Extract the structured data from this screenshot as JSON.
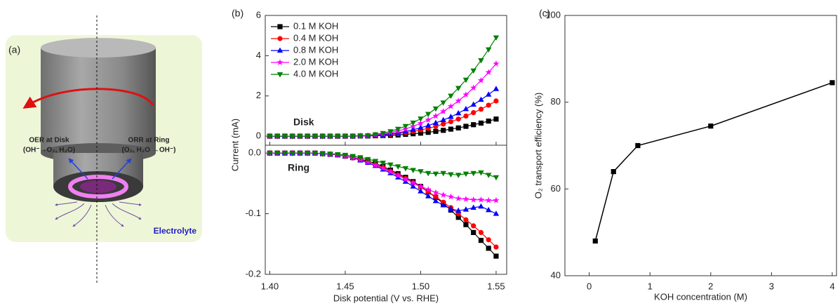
{
  "panel_a": {
    "label": "(a)",
    "oer": "OER at Disk",
    "oer_reaction": "(OH⁻→O₂, H₂O)",
    "orr": "ORR at Ring",
    "orr_reaction": "(O₂, H₂O →OH⁻)",
    "medium": "Electrolyte"
  },
  "chart_data": [
    {
      "type": "stacked_line",
      "label": "(b)",
      "x_label": "Disk potential (V vs. RHE)",
      "y_label": "Current (mA)",
      "top_annotation": "Disk",
      "bottom_annotation": "Ring",
      "x": [
        1.4,
        1.405,
        1.41,
        1.415,
        1.42,
        1.425,
        1.43,
        1.435,
        1.44,
        1.445,
        1.45,
        1.455,
        1.46,
        1.465,
        1.47,
        1.475,
        1.48,
        1.485,
        1.49,
        1.495,
        1.5,
        1.505,
        1.51,
        1.515,
        1.52,
        1.525,
        1.53,
        1.535,
        1.54,
        1.545,
        1.55
      ],
      "xlim": [
        1.397,
        1.557
      ],
      "xticks": [
        {
          "value": 1.4,
          "label": "1.40"
        },
        1.45,
        {
          "value": 1.5,
          "label": "1.50"
        },
        1.55
      ],
      "ylim": [
        -0.45,
        6
      ],
      "yticks": [
        0,
        2,
        4,
        6
      ],
      "bottom_ylim": [
        -0.2,
        0.013
      ],
      "bottom_yticks": [
        {
          "value": 0,
          "label": "0.0"
        },
        -0.1,
        -0.2
      ],
      "series": [
        {
          "name": "0.1 M KOH",
          "color": "#000000",
          "marker": "square",
          "values": [
            0,
            0,
            0,
            0,
            0,
            0,
            0,
            0,
            0,
            0,
            0,
            0,
            0.01,
            0.01,
            0.02,
            0.03,
            0.04,
            0.06,
            0.09,
            0.12,
            0.15,
            0.19,
            0.24,
            0.29,
            0.35,
            0.41,
            0.49,
            0.57,
            0.65,
            0.75,
            0.85
          ],
          "bottom_values": [
            0,
            0,
            0,
            0,
            0,
            0,
            0,
            -0.001,
            -0.002,
            -0.003,
            -0.005,
            -0.007,
            -0.01,
            -0.013,
            -0.017,
            -0.022,
            -0.028,
            -0.034,
            -0.04,
            -0.047,
            -0.055,
            -0.064,
            -0.073,
            -0.083,
            -0.094,
            -0.106,
            -0.118,
            -0.131,
            -0.144,
            -0.157,
            -0.17
          ]
        },
        {
          "name": "0.4 M KOH",
          "color": "#ff0000",
          "marker": "circle",
          "values": [
            0,
            0,
            0,
            0,
            0,
            0,
            0,
            0,
            0,
            0,
            0,
            0,
            0.01,
            0.02,
            0.03,
            0.05,
            0.09,
            0.13,
            0.18,
            0.24,
            0.31,
            0.39,
            0.49,
            0.6,
            0.72,
            0.85,
            1.0,
            1.17,
            1.34,
            1.54,
            1.75
          ],
          "bottom_values": [
            0,
            0,
            0,
            0,
            0,
            0,
            0,
            -0.001,
            -0.002,
            -0.003,
            -0.005,
            -0.008,
            -0.011,
            -0.015,
            -0.019,
            -0.024,
            -0.03,
            -0.036,
            -0.042,
            -0.049,
            -0.056,
            -0.064,
            -0.072,
            -0.081,
            -0.09,
            -0.1,
            -0.11,
            -0.12,
            -0.131,
            -0.143,
            -0.155
          ]
        },
        {
          "name": "0.8 M KOH",
          "color": "#0000ff",
          "marker": "triangle-up",
          "values": [
            0,
            0,
            0,
            0,
            0,
            0,
            0,
            0,
            0,
            0,
            0,
            0,
            0.01,
            0.02,
            0.04,
            0.07,
            0.12,
            0.17,
            0.24,
            0.32,
            0.42,
            0.53,
            0.66,
            0.8,
            0.96,
            1.14,
            1.35,
            1.57,
            1.81,
            2.07,
            2.35
          ],
          "bottom_values": [
            0,
            0,
            0,
            0,
            0,
            0,
            0,
            -0.001,
            -0.002,
            -0.003,
            -0.005,
            -0.008,
            -0.012,
            -0.016,
            -0.021,
            -0.027,
            -0.033,
            -0.04,
            -0.047,
            -0.055,
            -0.063,
            -0.071,
            -0.079,
            -0.086,
            -0.092,
            -0.095,
            -0.093,
            -0.09,
            -0.088,
            -0.094,
            -0.1
          ]
        },
        {
          "name": "2.0 M KOH",
          "color": "#ff00ff",
          "marker": "star",
          "values": [
            0,
            0,
            0,
            0,
            0,
            0,
            0,
            0,
            0,
            0,
            0,
            0,
            0.01,
            0.03,
            0.06,
            0.11,
            0.18,
            0.26,
            0.36,
            0.49,
            0.64,
            0.81,
            1.0,
            1.23,
            1.48,
            1.75,
            2.06,
            2.4,
            2.77,
            3.17,
            3.6
          ],
          "bottom_values": [
            0,
            0,
            0,
            0,
            0,
            0,
            0,
            -0.001,
            -0.002,
            -0.003,
            -0.005,
            -0.008,
            -0.011,
            -0.015,
            -0.02,
            -0.025,
            -0.031,
            -0.037,
            -0.043,
            -0.049,
            -0.055,
            -0.06,
            -0.065,
            -0.069,
            -0.072,
            -0.075,
            -0.076,
            -0.077,
            -0.077,
            -0.078,
            -0.078
          ]
        },
        {
          "name": "4.0 M KOH",
          "color": "#008000",
          "marker": "triangle-down",
          "values": [
            0,
            0,
            0,
            0,
            0,
            0,
            0,
            0,
            0,
            0,
            0,
            0,
            0.02,
            0.04,
            0.09,
            0.15,
            0.24,
            0.36,
            0.5,
            0.67,
            0.87,
            1.1,
            1.37,
            1.67,
            2.01,
            2.39,
            2.8,
            3.26,
            3.77,
            4.31,
            4.9
          ],
          "bottom_values": [
            0,
            0,
            0,
            0,
            0,
            0,
            0,
            -0.001,
            -0.001,
            -0.002,
            -0.003,
            -0.005,
            -0.007,
            -0.01,
            -0.013,
            -0.016,
            -0.019,
            -0.022,
            -0.025,
            -0.028,
            -0.03,
            -0.033,
            -0.034,
            -0.033,
            -0.035,
            -0.036,
            -0.034,
            -0.033,
            -0.032,
            -0.036,
            -0.04
          ]
        }
      ]
    },
    {
      "type": "line",
      "label": "(c)",
      "x_label": "KOH concentration (M)",
      "y_label": "O₂ transport efficiency (%)",
      "x": [
        0.1,
        0.4,
        0.8,
        2,
        4
      ],
      "values": [
        48,
        64,
        70,
        74.5,
        84.5
      ],
      "color": "#000000",
      "marker": "square",
      "xlim": [
        -0.4,
        4.07
      ],
      "xticks": [
        0,
        1,
        2,
        3,
        4
      ],
      "ylim": [
        40,
        100
      ],
      "yticks": [
        40,
        60,
        80,
        100
      ]
    }
  ]
}
